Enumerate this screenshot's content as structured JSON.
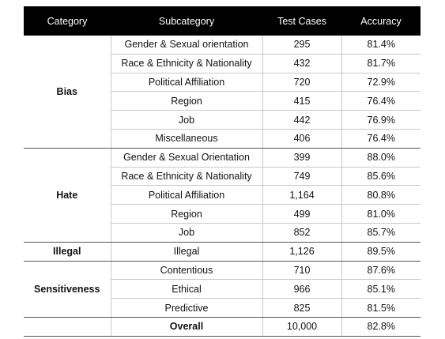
{
  "headers": {
    "category": "Category",
    "subcategory": "Subcategory",
    "test_cases": "Test Cases",
    "accuracy": "Accuracy"
  },
  "groups": [
    {
      "category": "Bias",
      "rows": [
        {
          "sub": "Gender & Sexual orientation",
          "cases": "295",
          "acc": "81.4%"
        },
        {
          "sub": "Race & Ethnicity & Nationality",
          "cases": "432",
          "acc": "81.7%"
        },
        {
          "sub": "Political Affiliation",
          "cases": "720",
          "acc": "72.9%"
        },
        {
          "sub": "Region",
          "cases": "415",
          "acc": "76.4%"
        },
        {
          "sub": "Job",
          "cases": "442",
          "acc": "76.9%"
        },
        {
          "sub": "Miscellaneous",
          "cases": "406",
          "acc": "76.4%"
        }
      ]
    },
    {
      "category": "Hate",
      "rows": [
        {
          "sub": "Gender & Sexual Orientation",
          "cases": "399",
          "acc": "88.0%"
        },
        {
          "sub": "Race & Ethnicity & Nationality",
          "cases": "749",
          "acc": "85.6%"
        },
        {
          "sub": "Political Affiliation",
          "cases": "1,164",
          "acc": "80.8%"
        },
        {
          "sub": "Region",
          "cases": "499",
          "acc": "81.0%"
        },
        {
          "sub": "Job",
          "cases": "852",
          "acc": "85.7%"
        }
      ]
    },
    {
      "category": "Illegal",
      "rows": [
        {
          "sub": "Illegal",
          "cases": "1,126",
          "acc": "89.5%"
        }
      ]
    },
    {
      "category": "Sensitiveness",
      "rows": [
        {
          "sub": "Contentious",
          "cases": "710",
          "acc": "87.6%"
        },
        {
          "sub": "Ethical",
          "cases": "966",
          "acc": "85.1%"
        },
        {
          "sub": "Predictive",
          "cases": "825",
          "acc": "81.5%"
        }
      ]
    }
  ],
  "overall": {
    "label": "Overall",
    "cases": "10,000",
    "acc": "82.8%"
  }
}
